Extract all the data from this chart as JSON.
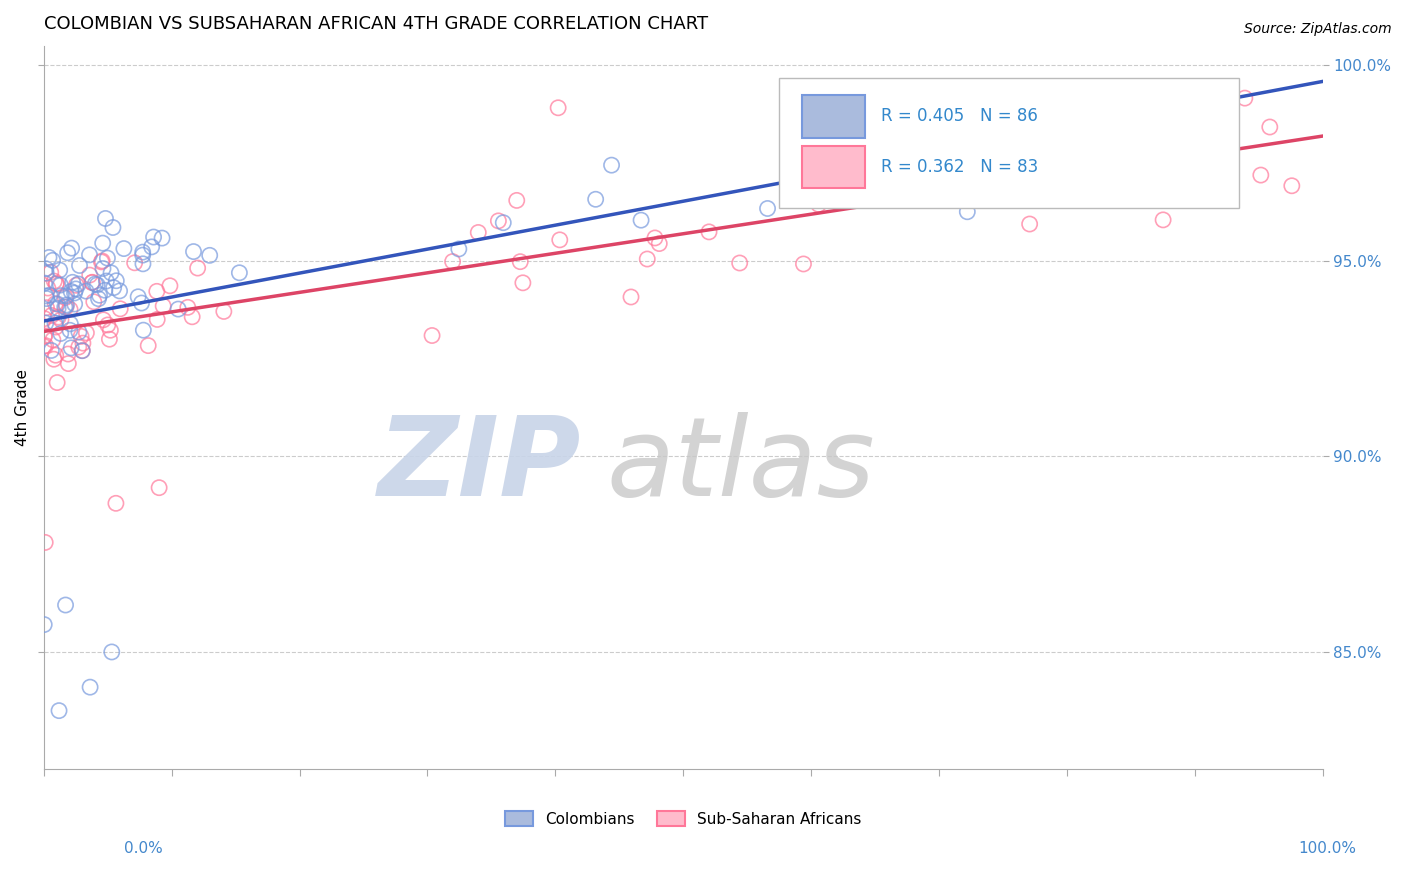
{
  "title": "COLOMBIAN VS SUBSAHARAN AFRICAN 4TH GRADE CORRELATION CHART",
  "source": "Source: ZipAtlas.com",
  "ylabel": "4th Grade",
  "colombian_color": "#7799dd",
  "subsaharan_color": "#ff7799",
  "colombian_R": 0.405,
  "colombian_N": 86,
  "subsaharan_R": 0.362,
  "subsaharan_N": 83,
  "title_fontsize": 13,
  "axis_label_color": "#4488cc",
  "ytick_values": [
    0.85,
    0.9,
    0.95,
    1.0
  ],
  "xlim": [
    0.0,
    1.0
  ],
  "ylim": [
    0.82,
    1.005
  ],
  "watermark_zip_color": "#c8d4e8",
  "watermark_atlas_color": "#c8c8c8",
  "col_line_color": "#3355bb",
  "sub_line_color": "#dd4466",
  "legend_text_color": "#3388cc",
  "col_patch_face": "#aabbdd",
  "col_patch_edge": "#7799dd",
  "sub_patch_face": "#ffbbcc",
  "sub_patch_edge": "#ff7799"
}
